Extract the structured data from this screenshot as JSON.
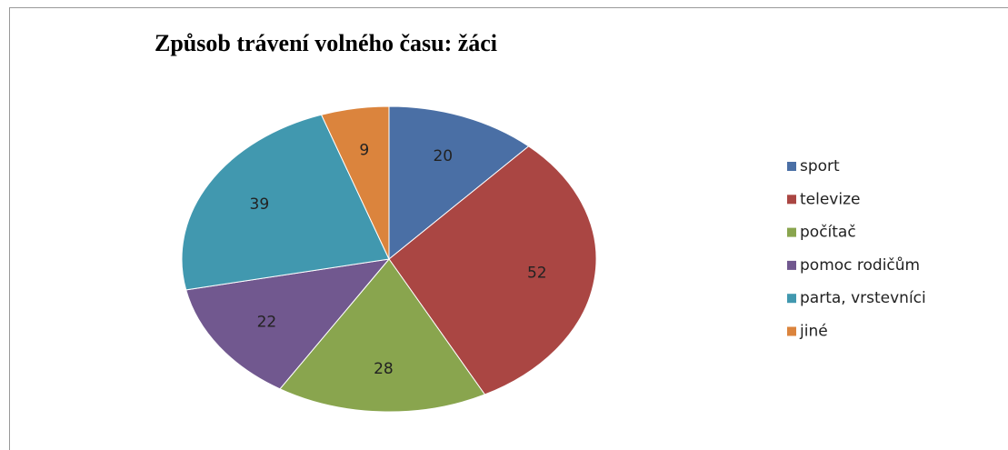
{
  "chart_data": {
    "type": "pie",
    "title": "Způsob trávení volného času: žáci",
    "categories": [
      "sport",
      "televize",
      "počítač",
      "pomoc rodičům",
      "parta, vrstevníci",
      "jiné"
    ],
    "values": [
      20,
      52,
      28,
      22,
      39,
      9
    ],
    "colors": [
      "#4a6fa5",
      "#aa4643",
      "#89a54e",
      "#71588f",
      "#4198af",
      "#db843d"
    ],
    "legend": "right"
  }
}
